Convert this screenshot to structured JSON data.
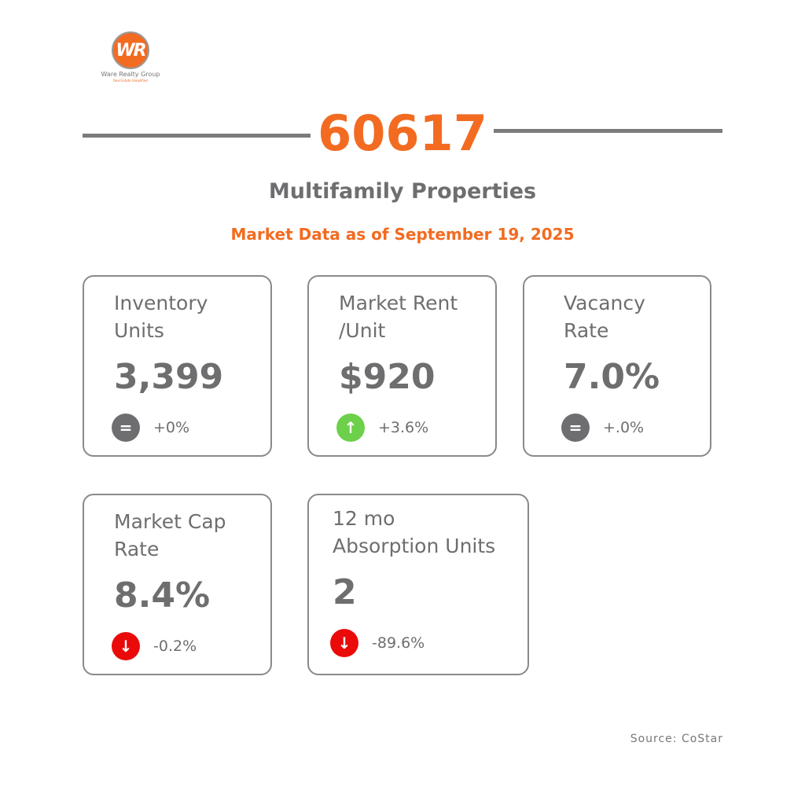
{
  "brand": {
    "name": "Ware Realty Group",
    "tagline": "Real Estate Simplified",
    "logo_letters": "WR",
    "color": "#f26b21"
  },
  "header": {
    "zip": "60617",
    "title": "Multifamily Properties",
    "subtitle": "Market Data as of September 19, 2025"
  },
  "cards": [
    {
      "label1": "Inventory",
      "label2": "Units",
      "value": "3,399",
      "change": "+0%",
      "trend": "flat",
      "icon": "equals-icon",
      "icon_glyph": "=",
      "color": "#6e6e70"
    },
    {
      "label1": "Market Rent",
      "label2": "/Unit",
      "value": "$920",
      "change": "+3.6%",
      "trend": "up",
      "icon": "arrow-up-icon",
      "icon_glyph": "↑",
      "color": "#6cd04a"
    },
    {
      "label1": "Vacancy",
      "label2": "Rate",
      "value": "7.0%",
      "change": "+.0%",
      "trend": "flat",
      "icon": "equals-icon",
      "icon_glyph": "=",
      "color": "#6e6e70"
    },
    {
      "label1": "Market Cap",
      "label2": "Rate",
      "value": "8.4%",
      "change": "-0.2%",
      "trend": "down",
      "icon": "arrow-down-icon",
      "icon_glyph": "↓",
      "color": "#ea0a0a"
    },
    {
      "label1": "12 mo",
      "label2": "Absorption Units",
      "value": "2",
      "change": "-89.6%",
      "trend": "down",
      "icon": "arrow-down-icon",
      "icon_glyph": "↓",
      "color": "#ea0a0a"
    }
  ],
  "footer": {
    "source": "Source: CoStar"
  }
}
